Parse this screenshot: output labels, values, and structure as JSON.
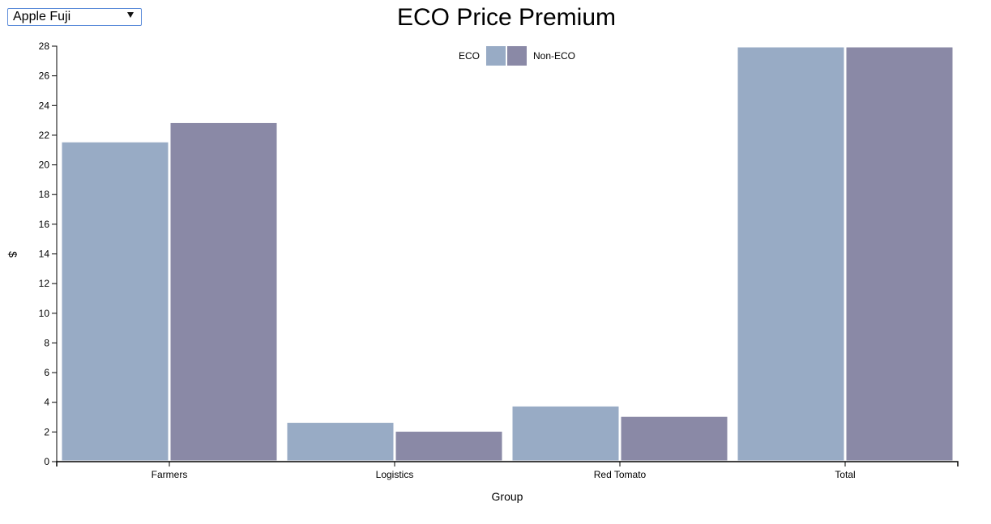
{
  "controls": {
    "product_select": {
      "selected": "Apple Fuji",
      "icon": "chevron-down-icon"
    }
  },
  "colors": {
    "eco": "#98abc5",
    "non_eco": "#8a89a6",
    "axis": "#000000",
    "bar_stroke": "#ffffff"
  },
  "chart_data": {
    "type": "bar",
    "title": "ECO Price Premium",
    "xlabel": "Group",
    "ylabel": "$",
    "ylim": [
      0,
      28
    ],
    "yticks": [
      0,
      2,
      4,
      6,
      8,
      10,
      12,
      14,
      16,
      18,
      20,
      22,
      24,
      26,
      28
    ],
    "categories": [
      "Farmers",
      "Logistics",
      "Red Tomato",
      "Total"
    ],
    "series": [
      {
        "name": "ECO",
        "values": [
          21.6,
          2.7,
          3.8,
          28.0
        ]
      },
      {
        "name": "Non-ECO",
        "values": [
          22.9,
          2.1,
          3.1,
          28.0
        ]
      }
    ],
    "legend": {
      "position": "top-center",
      "items": [
        "ECO",
        "Non-ECO"
      ]
    },
    "grid": false
  }
}
